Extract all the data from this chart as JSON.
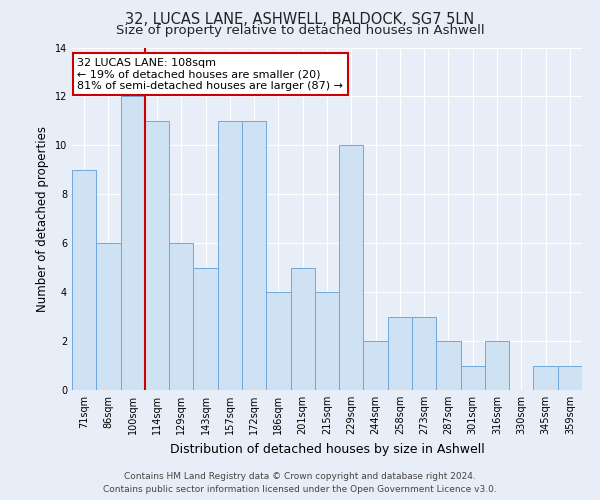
{
  "title": "32, LUCAS LANE, ASHWELL, BALDOCK, SG7 5LN",
  "subtitle": "Size of property relative to detached houses in Ashwell",
  "xlabel": "Distribution of detached houses by size in Ashwell",
  "ylabel": "Number of detached properties",
  "bins": [
    "71sqm",
    "86sqm",
    "100sqm",
    "114sqm",
    "129sqm",
    "143sqm",
    "157sqm",
    "172sqm",
    "186sqm",
    "201sqm",
    "215sqm",
    "229sqm",
    "244sqm",
    "258sqm",
    "273sqm",
    "287sqm",
    "301sqm",
    "316sqm",
    "330sqm",
    "345sqm",
    "359sqm"
  ],
  "values": [
    9,
    6,
    12,
    11,
    6,
    5,
    11,
    11,
    4,
    5,
    4,
    10,
    2,
    3,
    3,
    2,
    1,
    2,
    0,
    1,
    1
  ],
  "bar_color": "#cfe2f3",
  "bar_edge_color": "#6fa8dc",
  "highlight_line_color": "#cc0000",
  "annotation_title": "32 LUCAS LANE: 108sqm",
  "annotation_line1": "← 19% of detached houses are smaller (20)",
  "annotation_line2": "81% of semi-detached houses are larger (87) →",
  "annotation_box_facecolor": "#ffffff",
  "annotation_box_edgecolor": "#cc0000",
  "ylim": [
    0,
    14
  ],
  "yticks": [
    0,
    2,
    4,
    6,
    8,
    10,
    12,
    14
  ],
  "footer1": "Contains HM Land Registry data © Crown copyright and database right 2024.",
  "footer2": "Contains public sector information licensed under the Open Government Licence v3.0.",
  "bg_color": "#e8eef8",
  "plot_bg_color": "#e8eef8",
  "grid_color": "#ffffff",
  "title_fontsize": 10.5,
  "subtitle_fontsize": 9.5,
  "ylabel_fontsize": 8.5,
  "xlabel_fontsize": 9,
  "tick_fontsize": 7,
  "annotation_fontsize": 8,
  "footer_fontsize": 6.5
}
